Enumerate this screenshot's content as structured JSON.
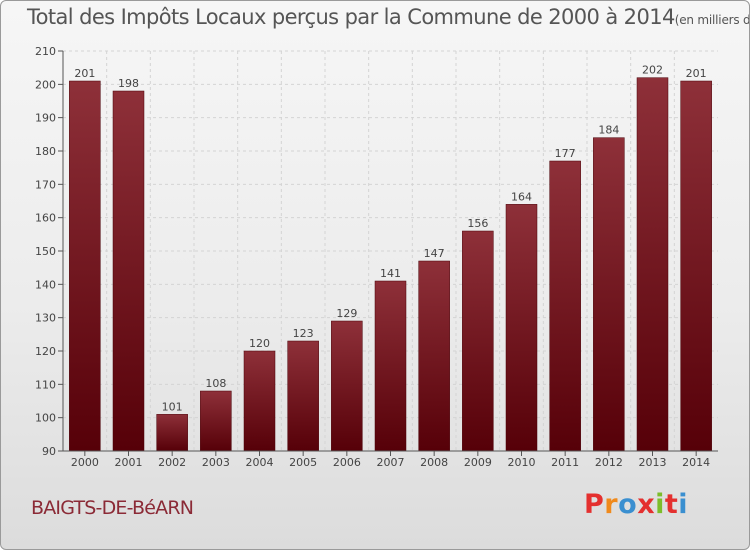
{
  "chart_data": {
    "type": "bar",
    "title": "Total des Impôts Locaux perçus par la Commune de 2000 à 2014",
    "subtitle": "(en milliers d'€)",
    "xlabel": "",
    "ylabel": "",
    "categories": [
      "2000",
      "2001",
      "2002",
      "2003",
      "2004",
      "2005",
      "2006",
      "2007",
      "2008",
      "2009",
      "2010",
      "2011",
      "2012",
      "2013",
      "2014"
    ],
    "values": [
      201,
      198,
      101,
      108,
      120,
      123,
      129,
      141,
      147,
      156,
      164,
      177,
      184,
      202,
      201
    ],
    "data_labels": [
      "201",
      "198",
      "101",
      "108",
      "120",
      "123",
      "129",
      "141",
      "147",
      "156",
      "164",
      "177",
      "184",
      "202",
      "201"
    ],
    "ylim": [
      90,
      210
    ],
    "yticks": [
      90,
      100,
      110,
      120,
      130,
      140,
      150,
      160,
      170,
      180,
      190,
      200,
      210
    ],
    "grid": true,
    "legend": "none",
    "bar_color": "#7a1a24"
  },
  "footer": {
    "commune": "BAIGTS-DE-BéARN",
    "logo_text": "Proxiti",
    "logo_colors": [
      "#e4302f",
      "#f08a1c",
      "#3a8fd0",
      "#e4302f",
      "#7cbd2a",
      "#e4302f",
      "#3a8fd0"
    ]
  }
}
